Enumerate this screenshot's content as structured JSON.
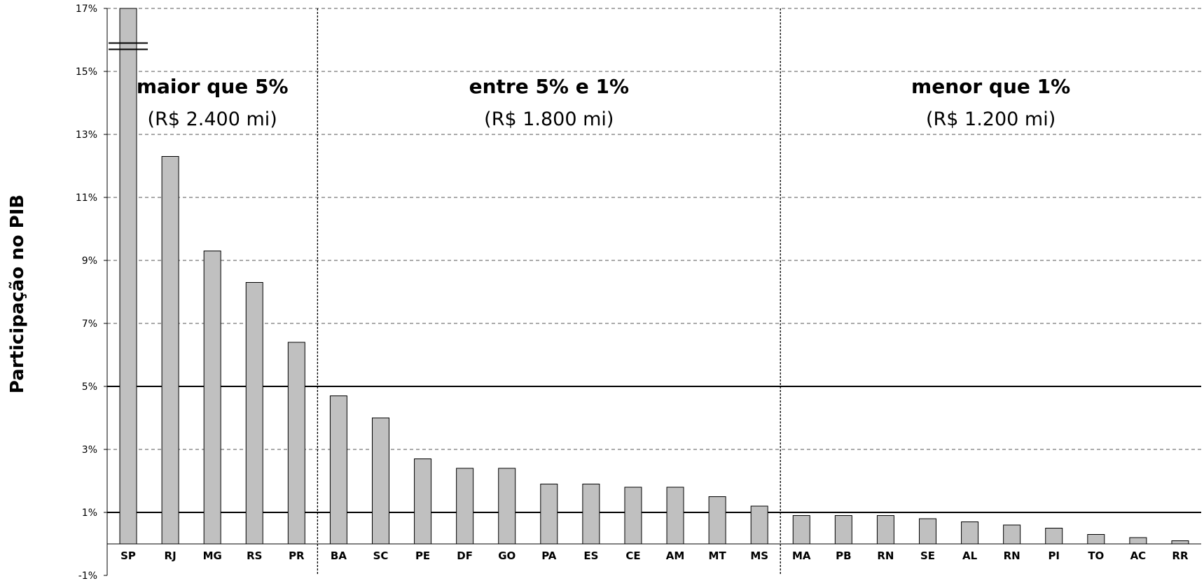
{
  "chart_data": {
    "type": "bar",
    "title": "",
    "xlabel": "",
    "ylabel": "Participação no PIB",
    "ylim": [
      -1,
      17
    ],
    "yticks": [
      -1,
      1,
      3,
      5,
      7,
      9,
      11,
      13,
      15,
      17
    ],
    "ytick_labels": [
      "-1%",
      "1%",
      "3%",
      "5%",
      "7%",
      "9%",
      "11%",
      "13%",
      "15%",
      "17%"
    ],
    "grid": true,
    "axis_break": "SP bar exceeds axis maximum (break marks near 15.9%)",
    "reference_lines": [
      5,
      1
    ],
    "categories": [
      "SP",
      "RJ",
      "MG",
      "RS",
      "PR",
      "BA",
      "SC",
      "PE",
      "DF",
      "GO",
      "PA",
      "ES",
      "CE",
      "AM",
      "MT",
      "MS",
      "MA",
      "PB",
      "RN",
      "SE",
      "AL",
      "RN",
      "PI",
      "TO",
      "AC",
      "RR"
    ],
    "values": [
      17,
      12.3,
      9.3,
      8.3,
      6.4,
      4.7,
      4.0,
      2.7,
      2.4,
      2.4,
      1.9,
      1.9,
      1.8,
      1.8,
      1.5,
      1.2,
      0.9,
      0.9,
      0.9,
      0.8,
      0.7,
      0.6,
      0.5,
      0.3,
      0.2,
      0.1
    ],
    "colors": {
      "bar": "#c0c0c0",
      "bar_stroke": "#000000",
      "grid": "#555555"
    },
    "zones": [
      {
        "title": "maior que 5%",
        "subtitle": "(R$ 2.400 mi)",
        "start": 0,
        "end": 4
      },
      {
        "title": "entre 5% e 1%",
        "subtitle": "(R$ 1.800 mi)",
        "start": 5,
        "end": 15
      },
      {
        "title": "menor que 1%",
        "subtitle": "(R$ 1.200 mi)",
        "start": 16,
        "end": 25
      }
    ]
  }
}
